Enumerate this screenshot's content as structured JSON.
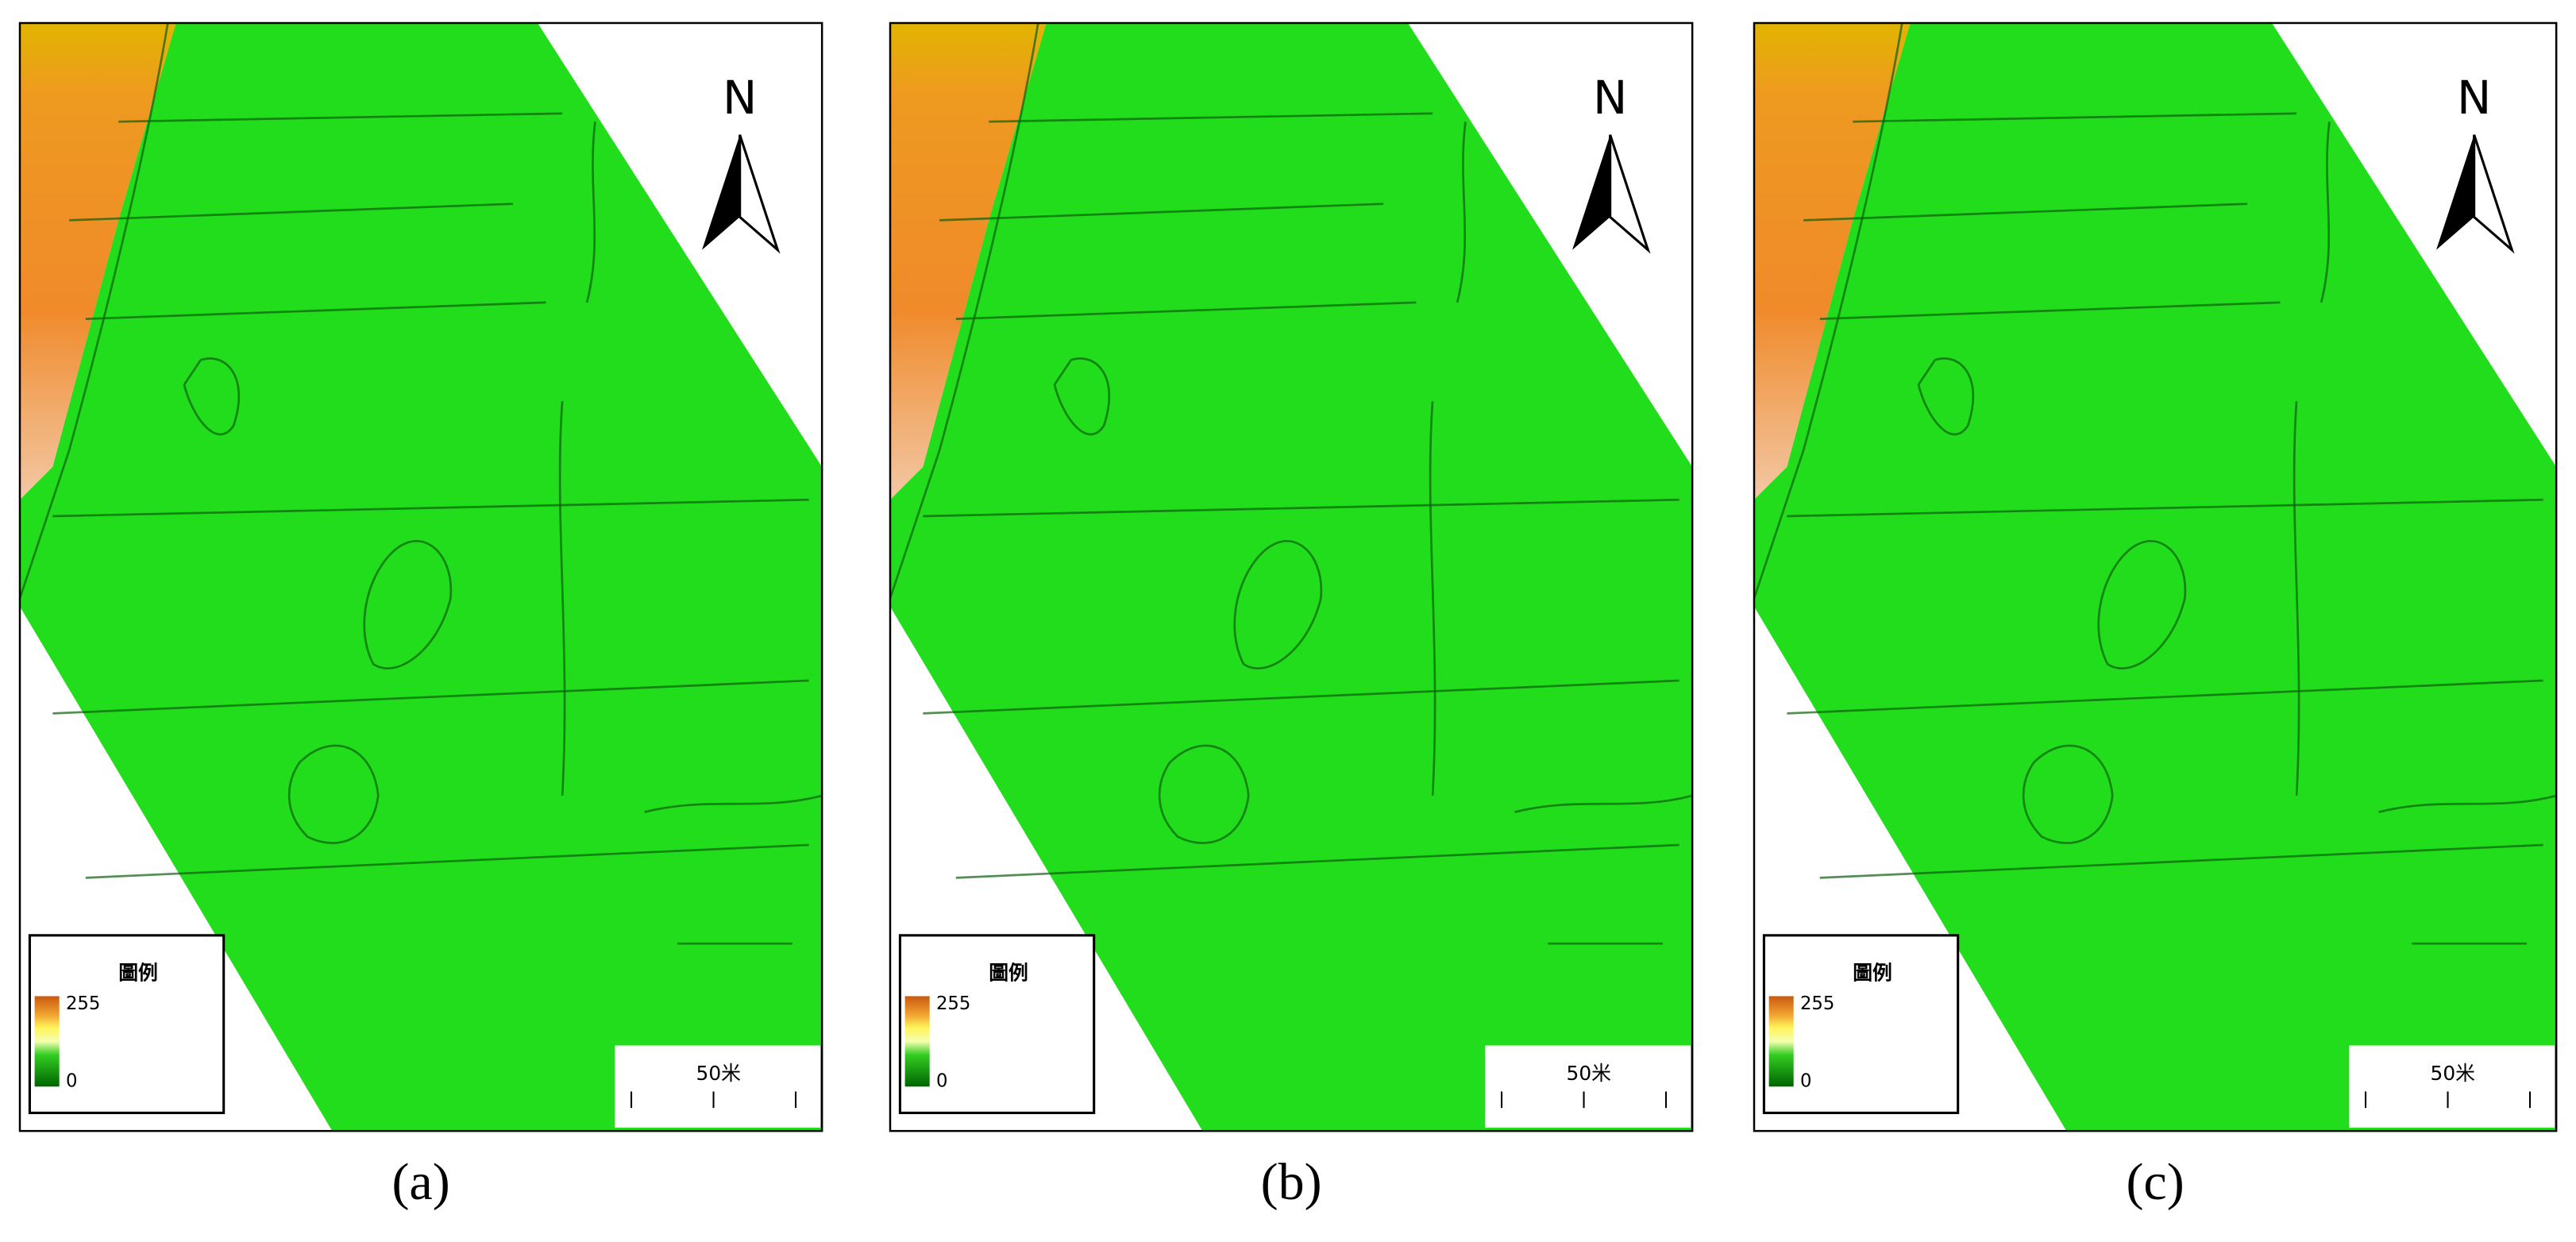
{
  "panels": [
    {
      "caption": "(a)",
      "north": "N",
      "legend": {
        "title": "圖例",
        "max": 255,
        "min": 0
      },
      "scale": "50米"
    },
    {
      "caption": "(b)",
      "north": "N",
      "legend": {
        "title": "圖例",
        "max": 255,
        "min": 0
      },
      "scale": "50米"
    },
    {
      "caption": "(c)",
      "north": "N",
      "legend": {
        "title": "圖例",
        "max": 255,
        "min": 0
      },
      "scale": "50米"
    }
  ]
}
